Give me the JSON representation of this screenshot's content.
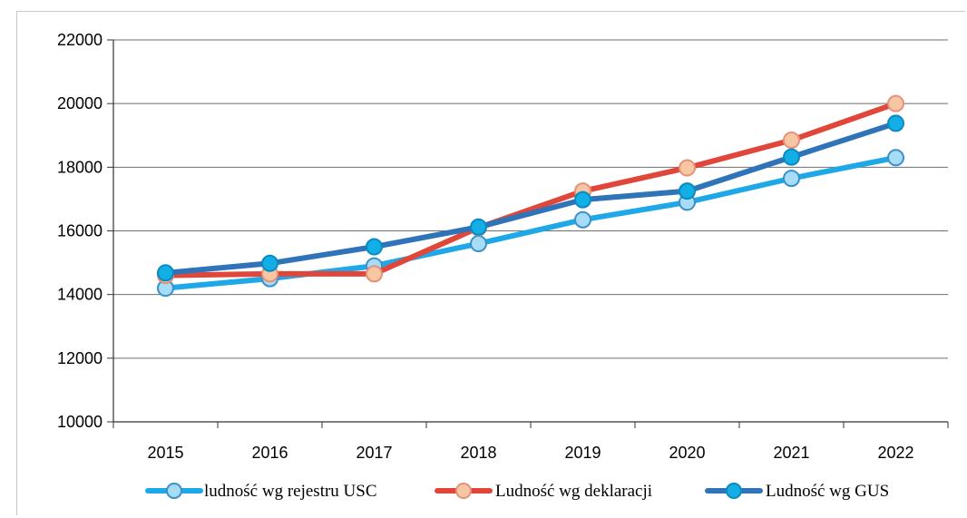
{
  "chart_data": {
    "type": "line",
    "title": "",
    "xlabel": "",
    "ylabel": "",
    "categories": [
      "2015",
      "2016",
      "2017",
      "2018",
      "2019",
      "2020",
      "2021",
      "2022"
    ],
    "ylim": [
      10000,
      22000
    ],
    "yticks": [
      "22000",
      "20000",
      "18000",
      "16000",
      "14000",
      "12000",
      "10000"
    ],
    "grid": "horizontal",
    "legend_position": "bottom",
    "series": [
      {
        "name": "ludność wg rejestru USC",
        "values": [
          14200,
          14500,
          14900,
          15600,
          16350,
          16900,
          17650,
          18300
        ],
        "line_color": "#1fa8e8",
        "marker_fill": "#a6dcf7",
        "marker_stroke": "#3c8fc7"
      },
      {
        "name": "Ludność wg deklaracji",
        "values": [
          14600,
          14650,
          14650,
          16100,
          17250,
          17980,
          18850,
          20000
        ],
        "line_color": "#e0473a",
        "marker_fill": "#f7c7a3",
        "marker_stroke": "#e4917a"
      },
      {
        "name": "Ludność wg GUS",
        "values": [
          14680,
          14980,
          15500,
          16120,
          16980,
          17250,
          18320,
          19380
        ],
        "line_color": "#2f73b8",
        "marker_fill": "#12aee6",
        "marker_stroke": "#0c8ac0"
      }
    ]
  }
}
